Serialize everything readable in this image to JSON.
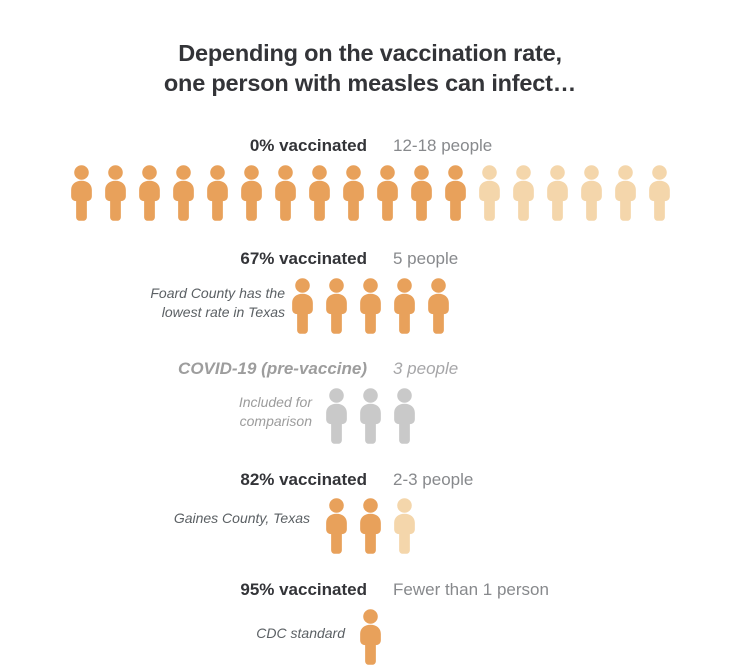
{
  "title": {
    "line1": "Depending on the vaccination rate,",
    "line2": "one person with measles can infect…"
  },
  "colors": {
    "person_solid": "#E8A15B",
    "person_faded": "#F4D6AB",
    "person_gray": "#C9C9C9",
    "label_dark": "#333438",
    "value_gray": "#87898C",
    "note_dark": "#5B6064",
    "covid_gray": "#9D9D9D"
  },
  "rows": [
    {
      "id": "rate-0",
      "label": "0% vaccinated",
      "value": "12-18 people",
      "note_lines": [],
      "icons": {
        "solid": 12,
        "faded": 6,
        "gray": 0
      },
      "covid": false
    },
    {
      "id": "rate-67",
      "label": "67% vaccinated",
      "value": "5 people",
      "note_lines": [
        "Foard County has the",
        "lowest rate in Texas"
      ],
      "icons": {
        "solid": 5,
        "faded": 0,
        "gray": 0
      },
      "covid": false
    },
    {
      "id": "covid",
      "label": "COVID-19 (pre-vaccine)",
      "value": "3 people",
      "note_lines": [
        "Included for",
        "comparison"
      ],
      "icons": {
        "solid": 0,
        "faded": 0,
        "gray": 3
      },
      "covid": true
    },
    {
      "id": "rate-82",
      "label": "82% vaccinated",
      "value": "2-3 people",
      "note_lines": [
        "Gaines County, Texas"
      ],
      "icons": {
        "solid": 2,
        "faded": 1,
        "gray": 0
      },
      "covid": false
    },
    {
      "id": "rate-95",
      "label": "95% vaccinated",
      "value": "Fewer than 1 person",
      "note_lines": [
        "CDC standard"
      ],
      "icons": {
        "solid": 1,
        "faded": 0,
        "gray": 0
      },
      "covid": false
    }
  ],
  "chart_data": {
    "type": "pictogram",
    "title": "Depending on the vaccination rate, one person with measles can infect…",
    "categories": [
      "0% vaccinated",
      "67% vaccinated",
      "COVID-19 (pre-vaccine)",
      "82% vaccinated",
      "95% vaccinated"
    ],
    "value_labels": [
      "12-18 people",
      "5 people",
      "3 people",
      "2-3 people",
      "Fewer than 1 person"
    ],
    "icon_counts_total": [
      18,
      5,
      3,
      3,
      1
    ],
    "icon_counts_solid": [
      12,
      5,
      0,
      2,
      1
    ],
    "icon_counts_faded": [
      6,
      0,
      0,
      1,
      0
    ],
    "icon_counts_gray": [
      0,
      0,
      3,
      0,
      0
    ],
    "annotations": [
      "",
      "Foard County has the lowest rate in Texas",
      "Included for comparison",
      "Gaines County, Texas",
      "CDC standard"
    ],
    "legend_position": "none",
    "grid": false
  }
}
